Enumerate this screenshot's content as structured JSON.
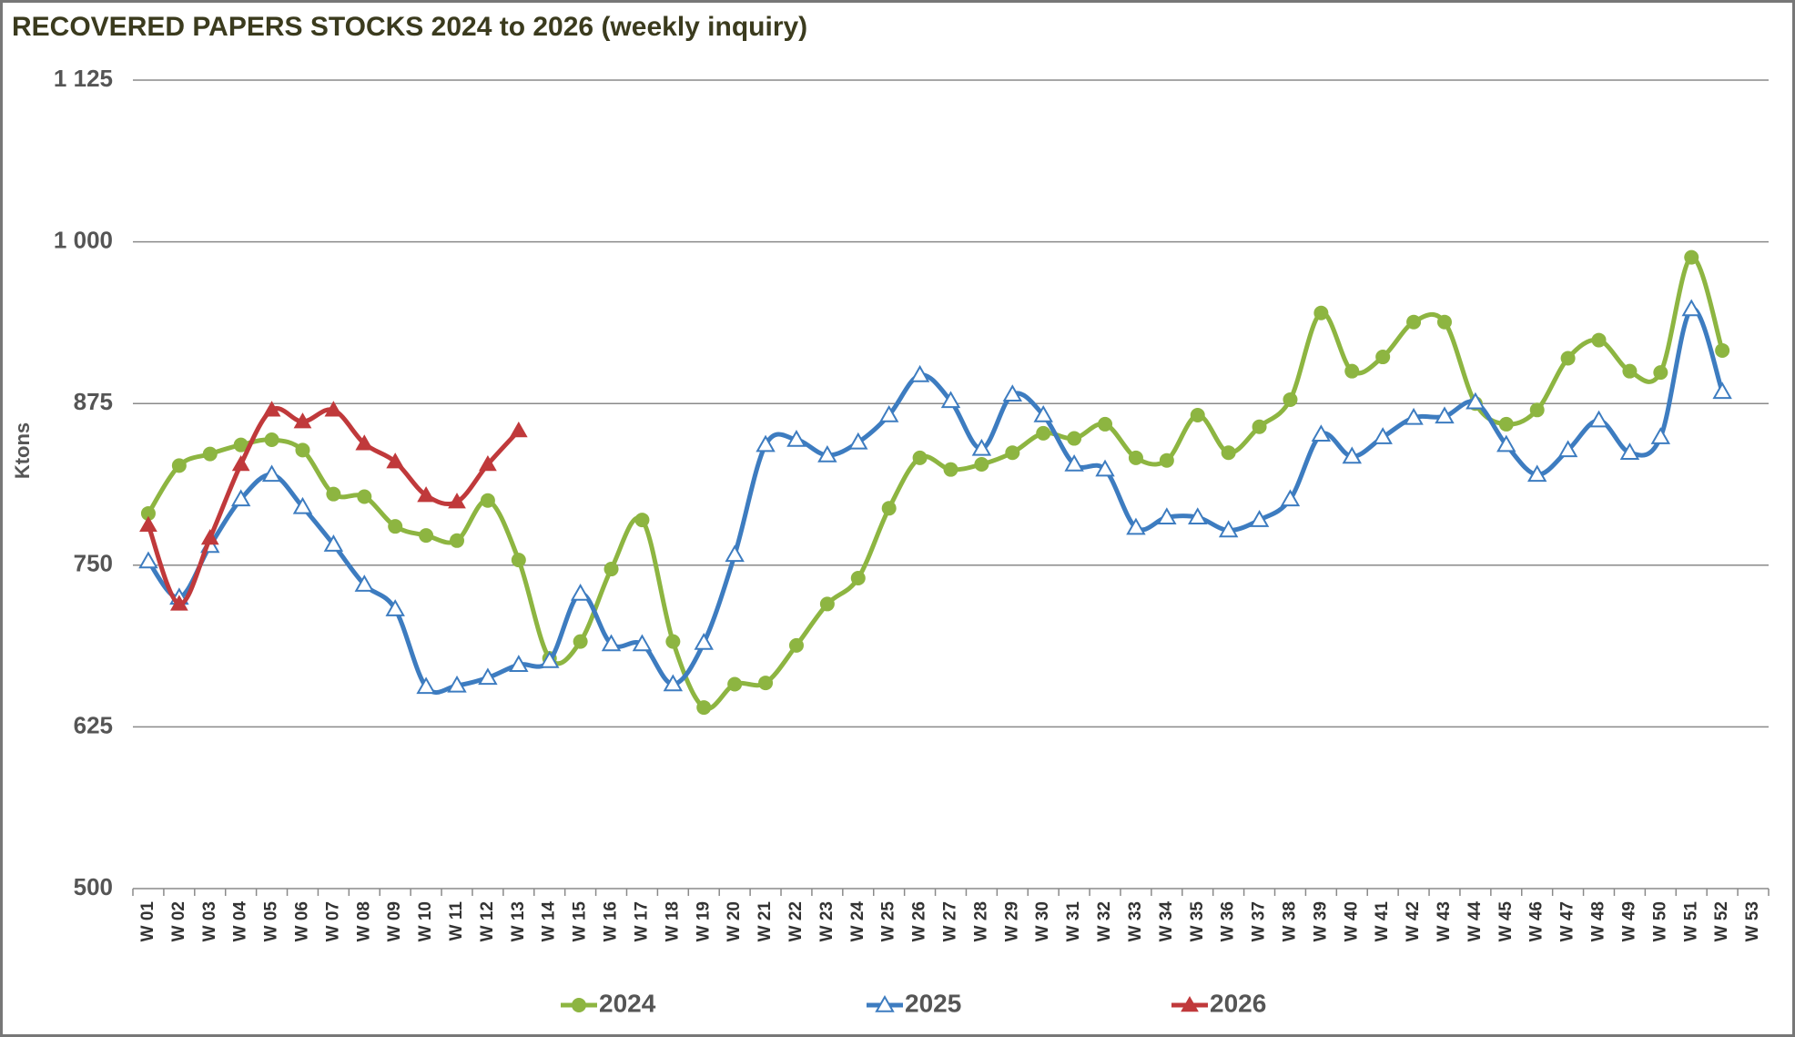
{
  "chart_data": {
    "type": "line",
    "title": "RECOVERED  PAPERS  STOCKS  2024 to 2026 (weekly inquiry)",
    "ylabel": "Ktons",
    "categories": [
      "W 01",
      "W 02",
      "W 03",
      "W 04",
      "W 05",
      "W 06",
      "W 07",
      "W 08",
      "W 09",
      "W 10",
      "W 11",
      "W 12",
      "W 13",
      "W 14",
      "W 15",
      "W 16",
      "W 17",
      "W 18",
      "W 19",
      "W 20",
      "W 21",
      "W 22",
      "W 23",
      "W 24",
      "W 25",
      "W 26",
      "W 27",
      "W 28",
      "W 29",
      "W 30",
      "W 31",
      "W 32",
      "W 33",
      "W 34",
      "W 35",
      "W 36",
      "W 37",
      "W 38",
      "W 39",
      "W 40",
      "W 41",
      "W 42",
      "W 43",
      "W 44",
      "W 45",
      "W 46",
      "W 47",
      "W 48",
      "W 49",
      "W 50",
      "W 51",
      "W 52",
      "W 53"
    ],
    "ylim": [
      500,
      1125
    ],
    "yticks": [
      500,
      625,
      750,
      875,
      {
        "value": 1000,
        "label": "1 000"
      },
      {
        "value": 1125,
        "label": "1 125"
      }
    ],
    "grid": true,
    "legend": "bottom",
    "series": [
      {
        "name": "2024",
        "color": "#8db541",
        "marker": "circle",
        "values": [
          790,
          827,
          836,
          843,
          847,
          839,
          805,
          803,
          780,
          773,
          769,
          800,
          754,
          678,
          691,
          747,
          785,
          691,
          640,
          658,
          659,
          688,
          720,
          740,
          794,
          833,
          824,
          828,
          837,
          852,
          848,
          859,
          833,
          831,
          866,
          837,
          857,
          878,
          945,
          900,
          911,
          938,
          938,
          875,
          859,
          870,
          910,
          924,
          900,
          899,
          988,
          916,
          null
        ]
      },
      {
        "name": "2025",
        "color": "#3d7cc0",
        "marker": "triangle-open",
        "values": [
          753,
          725,
          765,
          801,
          820,
          795,
          766,
          735,
          716,
          656,
          657,
          663,
          673,
          676,
          728,
          689,
          689,
          658,
          690,
          758,
          843,
          847,
          835,
          845,
          866,
          897,
          877,
          840,
          882,
          866,
          828,
          824,
          779,
          787,
          787,
          777,
          785,
          801,
          851,
          834,
          849,
          864,
          865,
          876,
          843,
          820,
          839,
          862,
          837,
          849,
          948,
          884,
          null
        ]
      },
      {
        "name": "2026",
        "color": "#c0393b",
        "marker": "triangle",
        "values": [
          781,
          720,
          771,
          828,
          870,
          861,
          870,
          844,
          830,
          804,
          799,
          828,
          854,
          null,
          null,
          null,
          null,
          null,
          null,
          null,
          null,
          null,
          null,
          null,
          null,
          null,
          null,
          null,
          null,
          null,
          null,
          null,
          null,
          null,
          null,
          null,
          null,
          null,
          null,
          null,
          null,
          null,
          null,
          null,
          null,
          null,
          null,
          null,
          null,
          null,
          null,
          null,
          null
        ]
      }
    ]
  }
}
